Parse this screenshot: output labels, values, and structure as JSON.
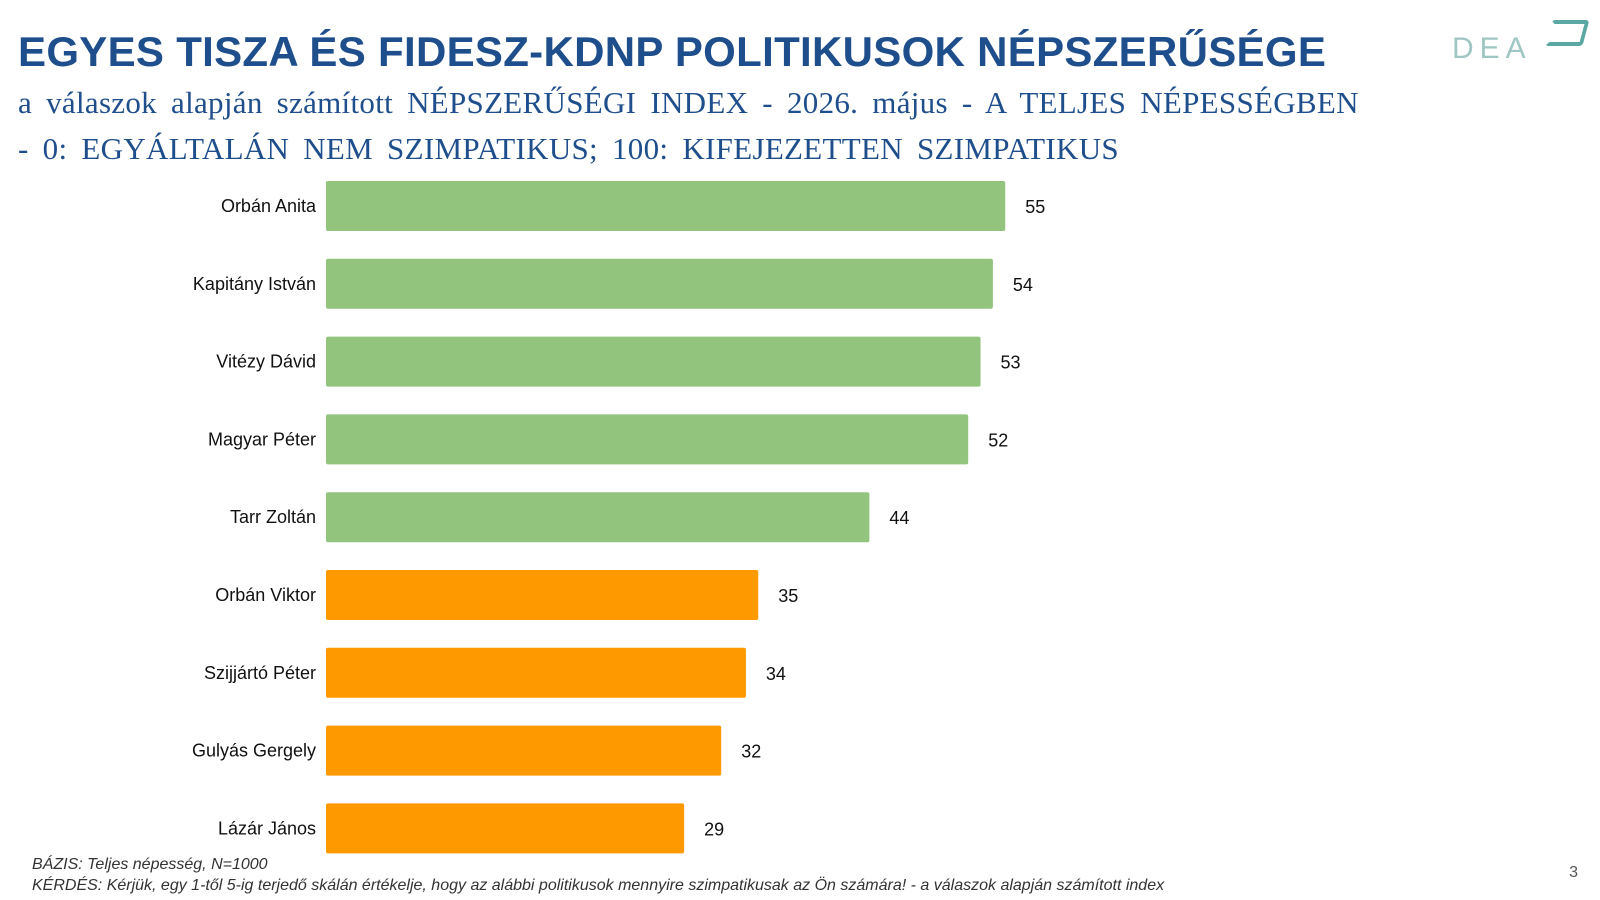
{
  "header": {
    "title": "EGYES TISZA ÉS FIDESZ-KDNP POLITIKUSOK NÉPSZERŰSÉGE",
    "logo_text": "DEA",
    "subtitle_line1": "a válaszok alapján számított NÉPSZERŰSÉGI INDEX - 2026. május - A TELJES NÉPESSÉGBEN",
    "subtitle_line2": "- 0: EGYÁLTALÁN NEM SZIMPATIKUS; 100: KIFEJEZETTEN SZIMPATIKUS"
  },
  "chart_data": {
    "type": "bar",
    "orientation": "horizontal",
    "title": "",
    "xlabel": "",
    "ylabel": "",
    "xlim": [
      0,
      100
    ],
    "grid": false,
    "legend": "none",
    "categories": [
      "Orbán Anita",
      "Kapitány István",
      "Vitézy Dávid",
      "Magyar Péter",
      "Tarr Zoltán",
      "Orbán Viktor",
      "Szijjártó Péter",
      "Gulyás Gergely",
      "Lázár János"
    ],
    "values": [
      55,
      54,
      53,
      52,
      44,
      35,
      34,
      32,
      29
    ],
    "colors": [
      "#92c47d",
      "#92c47d",
      "#92c47d",
      "#92c47d",
      "#92c47d",
      "#ff9900",
      "#ff9900",
      "#ff9900",
      "#ff9900"
    ]
  },
  "footer": {
    "basis": "BÁZIS: Teljes népesség, N=1000",
    "question": "KÉRDÉS: Kérjük, egy 1-től 5-ig terjedő skálán értékelje, hogy az alábbi politikusok mennyire szimpatikusak az Ön számára! - a válaszok alapján számított index",
    "page_number": "3"
  }
}
